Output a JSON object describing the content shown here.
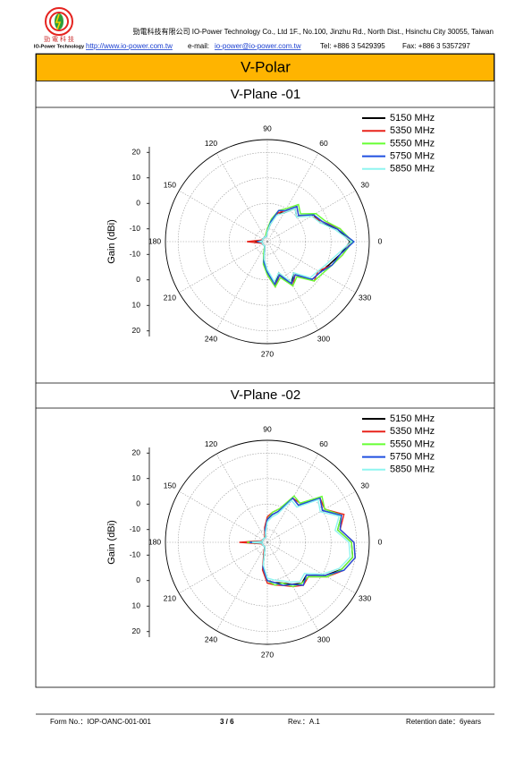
{
  "header": {
    "logo_cn": "勁 電 科 技",
    "logo_en": "IO-Power Technology",
    "company": "勁電科技有限公司 IO-Power Technology Co., Ltd 1F., No.100, Jinzhu Rd., North Dist., Hsinchu City 30055, Taiwan",
    "website": "http://www.io-power.com.tw",
    "email_label": "e-mail:",
    "email": "io-power@io-power.com.tw",
    "tel": "Tel: +886 3 5429395",
    "fax": "Fax: +886 3 5357297"
  },
  "title": "V-Polar",
  "chart_data": [
    {
      "type": "polar",
      "title": "V-Plane -01",
      "ylabel": "Gain (dBi)",
      "rlim": [
        -15,
        25
      ],
      "rticks": [
        -10,
        0,
        10,
        20
      ],
      "angle_ticks": [
        0,
        30,
        60,
        90,
        120,
        150,
        180,
        210,
        240,
        270,
        300,
        330
      ],
      "theta": [
        0,
        10,
        20,
        30,
        40,
        50,
        60,
        70,
        80,
        90,
        100,
        110,
        120,
        130,
        140,
        150,
        160,
        170,
        180,
        190,
        200,
        210,
        220,
        230,
        240,
        250,
        260,
        270,
        280,
        290,
        300,
        310,
        320,
        330,
        340,
        350
      ],
      "series": [
        {
          "name": "5150 MHz",
          "color": "#000000",
          "values": [
            17.5,
            13,
            7,
            6,
            0,
            2,
            -2,
            -3,
            -8,
            -11,
            -13,
            -13,
            -13,
            -13,
            -13,
            -13,
            -13,
            -13,
            -10,
            -13,
            -13,
            -13,
            -13,
            -13,
            -13,
            -12,
            -8,
            -3,
            2,
            -2,
            4,
            1,
            8,
            9,
            11,
            14
          ]
        },
        {
          "name": "5350 MHz",
          "color": "#e8231b",
          "values": [
            18,
            14,
            8,
            5,
            1,
            3,
            -1,
            -3,
            -7,
            -10,
            -12,
            -13,
            -13,
            -13,
            -13,
            -13,
            -13,
            -12,
            -7,
            -12,
            -13,
            -13,
            -13,
            -13,
            -13,
            -12,
            -7,
            -2,
            3,
            -1,
            5,
            2,
            9,
            8,
            12,
            15
          ]
        },
        {
          "name": "5550 MHz",
          "color": "#66ff33",
          "values": [
            18.5,
            14,
            9,
            7,
            2,
            4,
            0,
            -2,
            -6,
            -10,
            -12,
            -13,
            -13,
            -13,
            -13,
            -13,
            -13,
            -13,
            -11,
            -13,
            -13,
            -13,
            -13,
            -13,
            -13,
            -11,
            -6,
            -2,
            3,
            0,
            5,
            3,
            9,
            10,
            12,
            15
          ]
        },
        {
          "name": "5750 MHz",
          "color": "#1f4fe0",
          "values": [
            19,
            13,
            8,
            6,
            1,
            3,
            -1,
            -2,
            -7,
            -11,
            -13,
            -13,
            -13,
            -13,
            -13,
            -13,
            -13,
            -13,
            -11,
            -13,
            -13,
            -13,
            -13,
            -13,
            -13,
            -12,
            -7,
            -3,
            2,
            -1,
            4,
            2,
            8,
            9,
            12,
            14
          ]
        },
        {
          "name": "5850 MHz",
          "color": "#8ff5f0",
          "values": [
            18,
            12,
            7,
            5,
            0,
            2,
            -2,
            -4,
            -8,
            -11,
            -13,
            -13,
            -13,
            -13,
            -13,
            -13,
            -13,
            -13,
            -12,
            -13,
            -13,
            -13,
            -13,
            -13,
            -13,
            -12,
            -8,
            -4,
            1,
            -2,
            3,
            1,
            7,
            8,
            10,
            13
          ]
        }
      ]
    },
    {
      "type": "polar",
      "title": "V-Plane -02",
      "ylabel": "Gain (dBi)",
      "rlim": [
        -15,
        25
      ],
      "rticks": [
        -10,
        0,
        10,
        20
      ],
      "angle_ticks": [
        0,
        30,
        60,
        90,
        120,
        150,
        180,
        210,
        240,
        270,
        300,
        330
      ],
      "theta": [
        0,
        10,
        20,
        30,
        40,
        50,
        60,
        70,
        80,
        90,
        100,
        110,
        120,
        130,
        140,
        150,
        160,
        170,
        180,
        190,
        200,
        210,
        220,
        230,
        240,
        250,
        260,
        270,
        280,
        290,
        300,
        310,
        320,
        330,
        340,
        350
      ],
      "series": [
        {
          "name": "5150 MHz",
          "color": "#000000",
          "values": [
            18,
            13,
            16,
            10,
            12,
            4,
            5,
            -2,
            -4,
            -6,
            -10,
            -13,
            -13,
            -13,
            -13,
            -13,
            -13,
            -13,
            -6,
            -13,
            -13,
            -13,
            -13,
            -13,
            -13,
            -12,
            -5,
            0,
            1,
            2,
            4,
            6,
            5,
            11,
            16,
            19
          ]
        },
        {
          "name": "5350 MHz",
          "color": "#e8231b",
          "values": [
            19,
            14,
            17,
            11,
            12,
            5,
            5,
            -1,
            -3,
            -5,
            -9,
            -12,
            -13,
            -13,
            -13,
            -13,
            -13,
            -12,
            -4,
            -12,
            -13,
            -13,
            -13,
            -13,
            -13,
            -11,
            -4,
            1,
            2,
            3,
            5,
            7,
            6,
            12,
            17,
            20
          ]
        },
        {
          "name": "5550 MHz",
          "color": "#66ff33",
          "values": [
            18,
            13,
            16,
            11,
            13,
            5,
            6,
            -1,
            -3,
            -6,
            -10,
            -13,
            -13,
            -13,
            -13,
            -13,
            -13,
            -13,
            -7,
            -13,
            -13,
            -13,
            -13,
            -13,
            -13,
            -12,
            -5,
            0,
            2,
            2,
            5,
            6,
            6,
            12,
            16,
            19
          ]
        },
        {
          "name": "5750 MHz",
          "color": "#1f4fe0",
          "values": [
            19,
            14,
            16,
            10,
            12,
            4,
            5,
            -2,
            -4,
            -6,
            -10,
            -13,
            -13,
            -13,
            -13,
            -13,
            -13,
            -13,
            -8,
            -13,
            -13,
            -13,
            -13,
            -13,
            -13,
            -12,
            -5,
            0,
            1,
            3,
            4,
            7,
            5,
            11,
            17,
            20
          ]
        },
        {
          "name": "5850 MHz",
          "color": "#8ff5f0",
          "values": [
            17,
            12,
            15,
            9,
            11,
            3,
            4,
            -3,
            -5,
            -7,
            -11,
            -13,
            -13,
            -13,
            -13,
            -13,
            -13,
            -13,
            -9,
            -13,
            -13,
            -13,
            -13,
            -13,
            -13,
            -12,
            -6,
            -1,
            0,
            1,
            3,
            5,
            4,
            10,
            15,
            18
          ]
        }
      ]
    }
  ],
  "footer": {
    "form_no": "Form No.：IOP-OANC-001-001",
    "page": "3 / 6",
    "rev": "Rev.：A.1",
    "retention": "Retention date：6years"
  }
}
